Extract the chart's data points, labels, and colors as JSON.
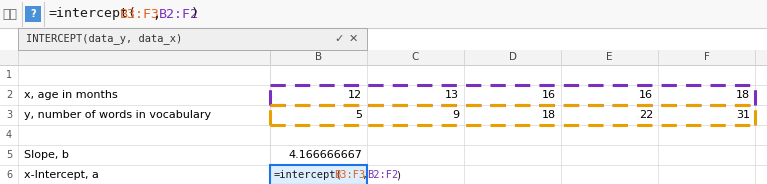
{
  "formula_bar_b3f3_color": "#e06020",
  "formula_bar_b2f2_color": "#7b2fbe",
  "purple_dashed_color": "#7b2fbe",
  "orange_dashed_color": "#e8a000",
  "autocomplete_text": "INTERCEPT(data_y, data_x)",
  "autocomplete_bg": "#efefef",
  "row2_label": "x, age in months",
  "row2_values": [
    12,
    13,
    16,
    16,
    18
  ],
  "row3_label": "y, number of words in vocabulary",
  "row3_values": [
    5,
    9,
    18,
    22,
    31
  ],
  "row5_label": "Slope, b",
  "row5_value": "4.166666667",
  "row6_label": "x-Intercept, a",
  "bg_color": "#ffffff",
  "header_bg": "#f3f3f3",
  "formula_bar_bg": "#f8f8f8",
  "selected_cell_bg": "#ddeeff",
  "selected_cell_border": "#1a73e8",
  "fig_width": 7.67,
  "fig_height": 1.84,
  "dpi": 100
}
